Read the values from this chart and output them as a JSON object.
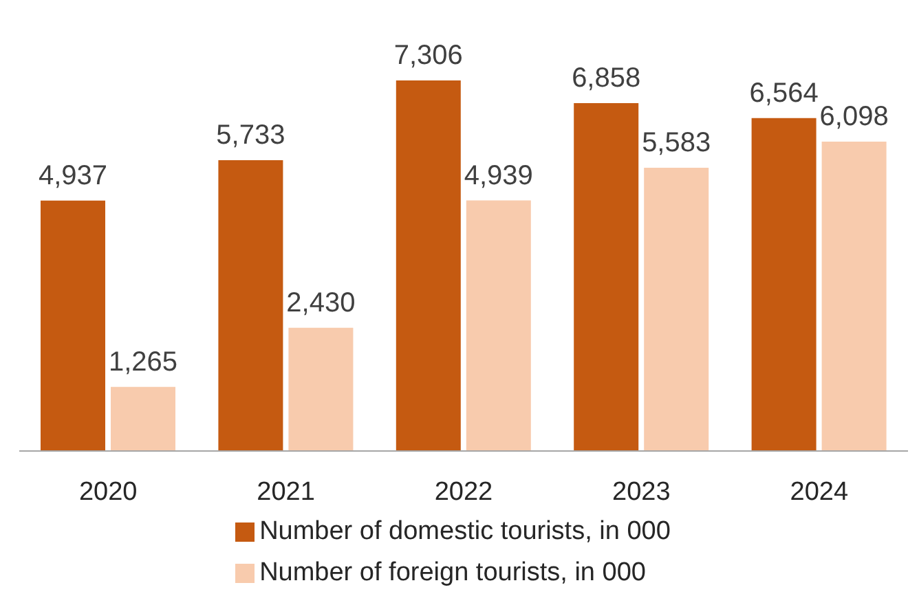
{
  "chart_data": {
    "type": "bar",
    "categories": [
      "2020",
      "2021",
      "2022",
      "2023",
      "2024"
    ],
    "series": [
      {
        "name": "Number of domestic tourists, in 000",
        "color": "#c55a11",
        "values": [
          4937,
          5733,
          7306,
          6858,
          6564
        ],
        "value_labels": [
          "4,937",
          "5,733",
          "7,306",
          "6,858",
          "6,564"
        ]
      },
      {
        "name": "Number of foreign tourists, in 000",
        "color": "#f8cbad",
        "values": [
          1265,
          2430,
          4939,
          5583,
          6098
        ],
        "value_labels": [
          "1,265",
          "2,430",
          "4,939",
          "5,583",
          "6,098"
        ]
      }
    ],
    "legend": "bottom"
  }
}
